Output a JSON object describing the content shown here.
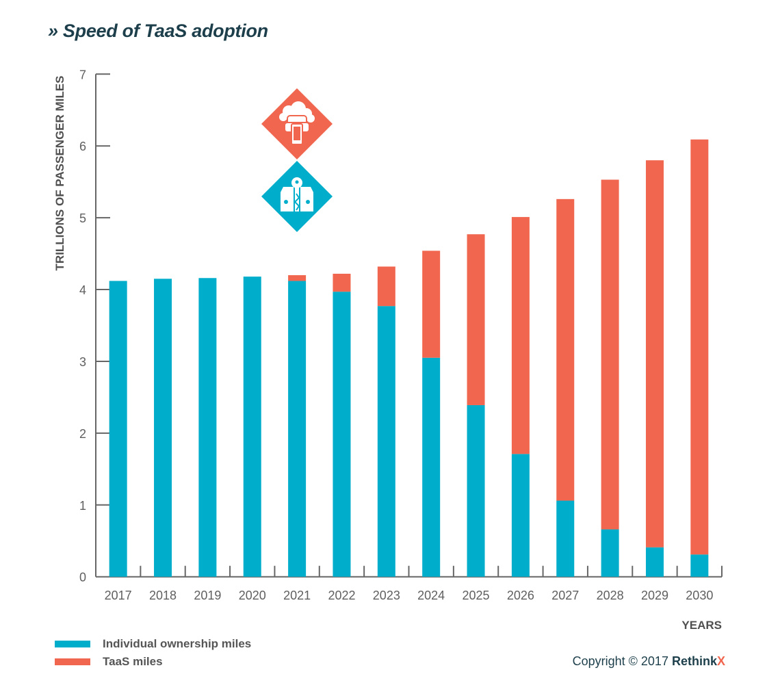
{
  "title": "» Speed of TaaS adoption",
  "colors": {
    "individual": "#00aecb",
    "taas": "#f1664e",
    "title": "#1d3f4b",
    "axis": "#666666"
  },
  "icons": [
    {
      "name": "taas-cloud-car-phone-icon",
      "color": "#f1664e"
    },
    {
      "name": "individual-car-key-icon",
      "color": "#00aecb"
    }
  ],
  "legend": [
    {
      "label": "Individual ownership miles",
      "color": "#00aecb"
    },
    {
      "label": "TaaS miles",
      "color": "#f1664e"
    }
  ],
  "copyright": {
    "text": "Copyright © 2017",
    "brand": "Rethink",
    "brand_x": "X",
    "brand_x_color": "#f1664e"
  },
  "chart_data": {
    "type": "bar",
    "stacked": true,
    "title": "» Speed of TaaS adoption",
    "xlabel": "YEARS",
    "ylabel": "TRILLIONS  OF PASSENGER MILES",
    "ylim": [
      0,
      7
    ],
    "yticks": [
      0,
      1,
      2,
      3,
      4,
      5,
      6,
      7
    ],
    "grid": false,
    "legend_position": "bottom-left",
    "categories": [
      "2017",
      "2018",
      "2019",
      "2020",
      "2021",
      "2022",
      "2023",
      "2024",
      "2025",
      "2026",
      "2027",
      "2028",
      "2029",
      "2030"
    ],
    "series": [
      {
        "name": "Individual ownership miles",
        "color": "#00aecb",
        "values": [
          4.12,
          4.15,
          4.16,
          4.18,
          4.12,
          3.97,
          3.77,
          3.05,
          2.39,
          1.71,
          1.06,
          0.66,
          0.41,
          0.31
        ]
      },
      {
        "name": "TaaS miles",
        "color": "#f1664e",
        "values": [
          0,
          0,
          0,
          0,
          0.08,
          0.25,
          0.55,
          1.49,
          2.38,
          3.3,
          4.2,
          4.87,
          5.39,
          5.78
        ]
      }
    ]
  }
}
